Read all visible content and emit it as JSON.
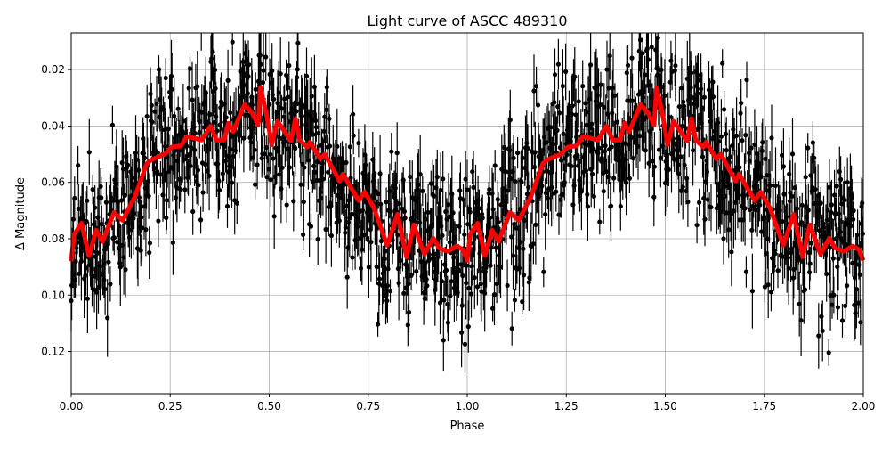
{
  "chart_data": {
    "type": "scatter",
    "title": "Light curve of ASCC 489310",
    "xlabel": "Phase",
    "ylabel": "Δ Magnitude",
    "xlim": [
      0.0,
      2.0
    ],
    "ylim": [
      0.135,
      0.007
    ],
    "y_inverted": true,
    "grid": true,
    "x_ticks": [
      "0.00",
      "0.25",
      "0.50",
      "0.75",
      "1.00",
      "1.25",
      "1.50",
      "1.75",
      "2.00"
    ],
    "y_ticks": [
      "0.02",
      "0.04",
      "0.06",
      "0.08",
      "0.10",
      "0.12"
    ],
    "colors": {
      "points": "#000000",
      "fit": "#ff0000",
      "grid": "#b0b0b0"
    },
    "series": [
      {
        "kind": "errorbar-points",
        "description_visible": "dense black points with vertical error bars, scatter roughly 0.02–0.13 around fit"
      },
      {
        "kind": "line",
        "x": [
          0.0,
          0.0075,
          0.026,
          0.045,
          0.063,
          0.079,
          0.108,
          0.13,
          0.161,
          0.191,
          0.202,
          0.236,
          0.254,
          0.277,
          0.292,
          0.33,
          0.352,
          0.367,
          0.386,
          0.397,
          0.409,
          0.438,
          0.457,
          0.472,
          0.478,
          0.494,
          0.506,
          0.521,
          0.555,
          0.566,
          0.577,
          0.596,
          0.603,
          0.629,
          0.64,
          0.678,
          0.686,
          0.726,
          0.741,
          0.764,
          0.798,
          0.824,
          0.847,
          0.865,
          0.892,
          0.914,
          0.929,
          0.951,
          0.973,
          0.989,
          1.0,
          1.0075,
          1.026,
          1.045,
          1.063,
          1.079,
          1.108,
          1.13,
          1.161,
          1.191,
          1.202,
          1.236,
          1.254,
          1.277,
          1.292,
          1.33,
          1.352,
          1.367,
          1.386,
          1.397,
          1.409,
          1.438,
          1.457,
          1.472,
          1.478,
          1.494,
          1.506,
          1.521,
          1.555,
          1.566,
          1.577,
          1.596,
          1.603,
          1.629,
          1.64,
          1.678,
          1.686,
          1.726,
          1.741,
          1.764,
          1.798,
          1.824,
          1.847,
          1.865,
          1.892,
          1.914,
          1.929,
          1.951,
          1.973,
          1.989,
          2.0
        ],
        "y": [
          0.088,
          0.0785,
          0.0745,
          0.086,
          0.077,
          0.081,
          0.0707,
          0.0735,
          0.065,
          0.0533,
          0.052,
          0.05,
          0.0475,
          0.047,
          0.0437,
          0.045,
          0.04,
          0.045,
          0.045,
          0.039,
          0.042,
          0.0323,
          0.0355,
          0.0396,
          0.0263,
          0.0365,
          0.0466,
          0.0383,
          0.0453,
          0.0374,
          0.045,
          0.0475,
          0.0457,
          0.0517,
          0.05,
          0.0596,
          0.057,
          0.0665,
          0.0634,
          0.069,
          0.0823,
          0.0713,
          0.0865,
          0.0751,
          0.0855,
          0.0798,
          0.0833,
          0.0845,
          0.0826,
          0.0839,
          0.0877,
          0.0785,
          0.0745,
          0.086,
          0.077,
          0.081,
          0.0707,
          0.0735,
          0.065,
          0.0533,
          0.052,
          0.05,
          0.0475,
          0.047,
          0.0437,
          0.045,
          0.04,
          0.045,
          0.045,
          0.039,
          0.042,
          0.0323,
          0.0355,
          0.0396,
          0.0263,
          0.0365,
          0.0466,
          0.0383,
          0.0453,
          0.0374,
          0.045,
          0.0475,
          0.0457,
          0.0517,
          0.05,
          0.0596,
          0.057,
          0.0665,
          0.0634,
          0.069,
          0.0823,
          0.0713,
          0.0865,
          0.0751,
          0.0855,
          0.0798,
          0.0833,
          0.0845,
          0.0826,
          0.0839,
          0.0877
        ]
      }
    ]
  }
}
